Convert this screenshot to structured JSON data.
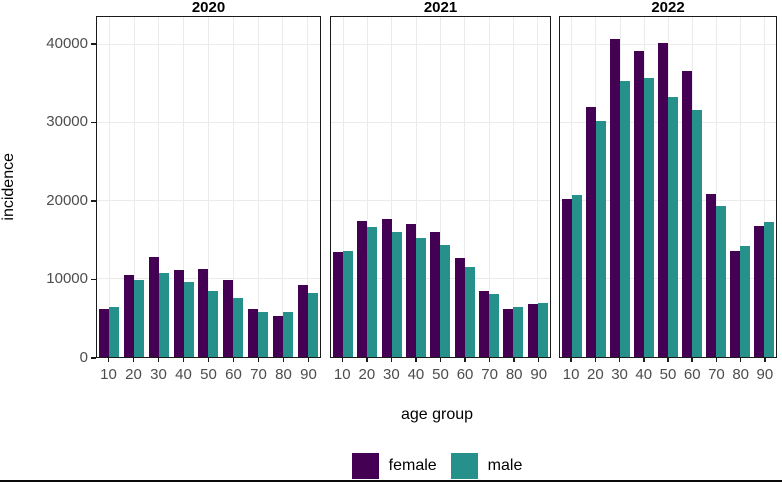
{
  "figure": {
    "ylabel": "incidence",
    "xlabel": "age group",
    "background": "#ffffff"
  },
  "chart_data": {
    "type": "bar",
    "grouping": "dodged",
    "faceted_by": "year",
    "facets": [
      "2020",
      "2021",
      "2022"
    ],
    "categories": [
      "10",
      "20",
      "30",
      "40",
      "50",
      "60",
      "70",
      "80",
      "90"
    ],
    "xlabel": "age group",
    "ylabel": "incidence",
    "y_ticks": [
      0,
      10000,
      20000,
      30000,
      40000
    ],
    "y_tick_labels": [
      "0",
      "10000",
      "20000",
      "30000",
      "40000"
    ],
    "ylim": [
      0,
      43560
    ],
    "grid": "major-both-light-gray",
    "legend_position": "bottom",
    "colors": {
      "female": "#440154",
      "male": "#26918b"
    },
    "series_names": [
      "female",
      "male"
    ],
    "facet_series": [
      {
        "facet": "2020",
        "series": [
          {
            "name": "female",
            "values": [
              6100,
              10500,
              12800,
              11200,
              11300,
              9900,
              6200,
              5200,
              9200
            ]
          },
          {
            "name": "male",
            "values": [
              6400,
              9900,
              10800,
              9600,
              8500,
              7600,
              5800,
              5800,
              8200
            ]
          }
        ]
      },
      {
        "facet": "2021",
        "series": [
          {
            "name": "female",
            "values": [
              13400,
              17400,
              17700,
              17000,
              16000,
              12700,
              8500,
              6100,
              6800
            ]
          },
          {
            "name": "male",
            "values": [
              13600,
              16700,
              16000,
              15300,
              14300,
              11500,
              8100,
              6400,
              6900
            ]
          }
        ]
      },
      {
        "facet": "2022",
        "series": [
          {
            "name": "female",
            "values": [
              20300,
              32000,
              40800,
              39200,
              40200,
              36700,
              20900,
              13600,
              16800
            ]
          },
          {
            "name": "male",
            "values": [
              20800,
              30200,
              35400,
              35800,
              33300,
              31700,
              19300,
              14200,
              17300
            ]
          }
        ]
      }
    ]
  },
  "legend": {
    "items": [
      {
        "label": "female",
        "color": "#440154"
      },
      {
        "label": "male",
        "color": "#26918b"
      }
    ]
  }
}
